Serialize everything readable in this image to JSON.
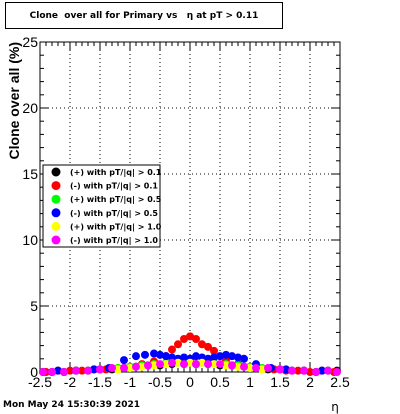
{
  "chart_data": {
    "type": "scatter",
    "title": "Clone  over all for Primary vs   η at pT > 0.11",
    "xlabel": "η",
    "ylabel": "Clone  over all (%)",
    "xlim": [
      -2.5,
      2.5
    ],
    "ylim": [
      0,
      25
    ],
    "x_ticks": [
      "-2.5",
      "-2",
      "-1.5",
      "-1",
      "-0.5",
      "0",
      "0.5",
      "1",
      "1.5",
      "2",
      "2.5"
    ],
    "y_ticks": [
      "0",
      "5",
      "10",
      "15",
      "20",
      "25"
    ],
    "grid": true,
    "legend_position": "middle-left",
    "series": [
      {
        "name": "(+) with pT/|q| > 0.1",
        "color": "#000000",
        "x": [
          -2.45,
          -2.3,
          -2.1,
          -1.9,
          -1.7,
          -1.5,
          -1.3,
          -1.1,
          -0.9,
          -0.7,
          -0.5,
          -0.3,
          -0.1,
          0.1,
          0.3,
          0.5,
          0.7,
          0.9,
          1.1,
          1.3,
          1.5,
          1.7,
          1.9,
          2.1,
          2.3,
          2.45
        ],
        "y": [
          0.0,
          0.0,
          0.0,
          0.1,
          0.1,
          0.2,
          0.2,
          0.3,
          0.4,
          0.5,
          0.5,
          0.6,
          0.6,
          0.6,
          0.6,
          0.5,
          0.5,
          0.4,
          0.3,
          0.2,
          0.2,
          0.1,
          0.1,
          0.0,
          0.1,
          0.1
        ]
      },
      {
        "name": "(-) with pT/|q| > 0.1",
        "color": "#ff0000",
        "x": [
          -2.4,
          -2.2,
          -2.0,
          -1.8,
          -1.6,
          -1.4,
          -1.2,
          -1.0,
          -0.8,
          -0.6,
          -0.4,
          -0.3,
          -0.2,
          -0.1,
          0.0,
          0.1,
          0.2,
          0.3,
          0.4,
          0.6,
          0.8,
          1.0,
          1.2,
          1.4,
          1.6,
          1.8,
          2.0,
          2.2,
          2.4
        ],
        "y": [
          0.0,
          0.1,
          0.1,
          0.1,
          0.2,
          0.2,
          0.3,
          0.4,
          0.6,
          0.8,
          1.2,
          1.7,
          2.1,
          2.5,
          2.7,
          2.5,
          2.1,
          1.9,
          1.6,
          0.9,
          0.6,
          0.4,
          0.3,
          0.2,
          0.1,
          0.1,
          0.0,
          0.1,
          0.0
        ]
      },
      {
        "name": "(+) with pT/|q| > 0.5",
        "color": "#00ff00",
        "x": [
          -1.2,
          -1.0,
          -0.8,
          -0.6,
          -0.4,
          -0.2,
          0.0,
          0.2,
          0.4,
          0.6,
          0.8,
          1.0,
          1.2
        ],
        "y": [
          0.3,
          0.4,
          0.5,
          0.6,
          0.7,
          0.7,
          0.8,
          0.7,
          0.7,
          0.6,
          0.5,
          0.4,
          0.3
        ]
      },
      {
        "name": "(-) with pT/|q| > 0.5",
        "color": "#0000ff",
        "x": [
          -2.2,
          -1.9,
          -1.6,
          -1.35,
          -1.1,
          -0.9,
          -0.75,
          -0.6,
          -0.5,
          -0.4,
          -0.3,
          -0.2,
          -0.1,
          0.0,
          0.1,
          0.2,
          0.3,
          0.4,
          0.5,
          0.6,
          0.7,
          0.8,
          0.9,
          1.1,
          1.35,
          1.6,
          1.9,
          2.2
        ],
        "y": [
          0.1,
          0.1,
          0.2,
          0.3,
          0.9,
          1.2,
          1.3,
          1.4,
          1.3,
          1.2,
          1.1,
          1.0,
          1.1,
          1.0,
          1.2,
          1.1,
          1.0,
          1.1,
          1.2,
          1.3,
          1.2,
          1.1,
          1.0,
          0.6,
          0.3,
          0.2,
          0.1,
          0.1
        ]
      },
      {
        "name": "(+) with pT/|q| > 1.0",
        "color": "#ffff00",
        "x": [
          -1.2,
          -1.0,
          -0.8,
          -0.6,
          -0.4,
          -0.2,
          0.0,
          0.2,
          0.4,
          0.6,
          0.8,
          1.0,
          1.2
        ],
        "y": [
          0.2,
          0.3,
          0.4,
          0.5,
          0.6,
          0.7,
          0.7,
          0.7,
          0.6,
          0.5,
          0.4,
          0.3,
          0.2
        ]
      },
      {
        "name": "(-) with pT/|q| > 1.0",
        "color": "#ff00ff",
        "x": [
          -2.45,
          -2.3,
          -2.1,
          -1.9,
          -1.7,
          -1.5,
          -1.3,
          -1.1,
          -0.9,
          -0.7,
          -0.5,
          -0.3,
          -0.1,
          0.1,
          0.3,
          0.5,
          0.7,
          0.9,
          1.1,
          1.3,
          1.5,
          1.7,
          1.9,
          2.1,
          2.3,
          2.45
        ],
        "y": [
          0.0,
          0.0,
          0.0,
          0.1,
          0.1,
          0.2,
          0.3,
          0.3,
          0.4,
          0.5,
          0.6,
          0.7,
          0.6,
          0.6,
          0.6,
          0.6,
          0.5,
          0.4,
          0.3,
          0.3,
          0.2,
          0.1,
          0.1,
          0.0,
          0.1,
          0.0
        ]
      }
    ]
  },
  "footer": {
    "timestamp": "Mon May 24 15:30:39 2021"
  }
}
